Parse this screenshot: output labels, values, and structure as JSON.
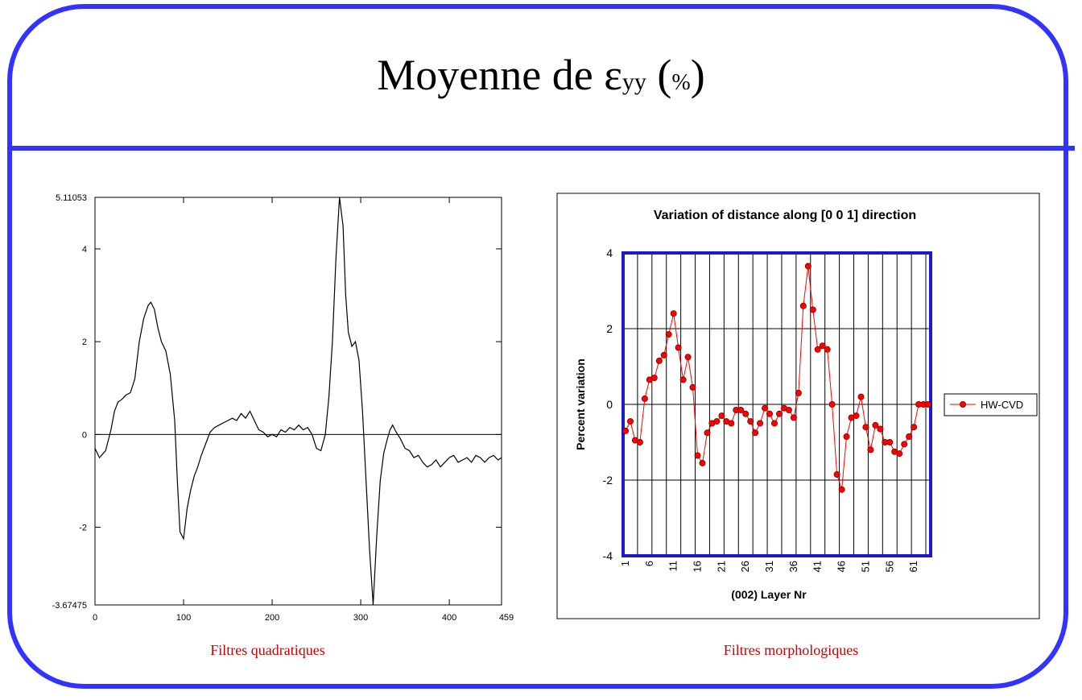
{
  "slide": {
    "title_main": "Moyenne de ε",
    "title_sub": "yy",
    "title_open": " (",
    "title_pct": "%",
    "title_close": ")"
  },
  "captions": {
    "left": "Filtres quadratiques",
    "right": "Filtres morphologiques"
  },
  "chart_data": [
    {
      "type": "line",
      "title": "",
      "xlabel": "",
      "ylabel": "",
      "xlim": [
        0,
        459
      ],
      "ylim": [
        -3.67475,
        5.11053
      ],
      "x_ticks": [
        "0",
        "100",
        "200",
        "300",
        "400",
        "459"
      ],
      "y_ticks": [
        "5.11053",
        "4",
        "2",
        "0",
        "-2",
        "-3.67475"
      ],
      "zero_line": true,
      "color": "#000000",
      "series": [
        {
          "x": [
            0,
            5,
            12,
            18,
            22,
            26,
            30,
            35,
            40,
            45,
            50,
            55,
            60,
            63,
            67,
            71,
            75,
            80,
            85,
            90,
            93,
            96,
            100,
            104,
            108,
            112,
            116,
            120,
            125,
            130,
            135,
            140,
            145,
            150,
            155,
            160,
            165,
            170,
            175,
            180,
            185,
            190,
            195,
            200,
            205,
            210,
            215,
            220,
            225,
            230,
            235,
            240,
            245,
            250,
            255,
            260,
            264,
            268,
            272,
            276,
            280,
            283,
            286,
            290,
            294,
            298,
            302,
            306,
            310,
            314,
            318,
            322,
            326,
            330,
            333,
            336,
            340,
            345,
            350,
            355,
            360,
            365,
            370,
            375,
            380,
            385,
            390,
            395,
            400,
            405,
            410,
            415,
            420,
            425,
            430,
            435,
            440,
            445,
            450,
            455,
            459
          ],
          "y": [
            -0.3,
            -0.5,
            -0.35,
            0.1,
            0.5,
            0.7,
            0.75,
            0.85,
            0.9,
            1.2,
            2.0,
            2.5,
            2.78,
            2.85,
            2.7,
            2.3,
            2.0,
            1.8,
            1.3,
            0.3,
            -1.0,
            -2.1,
            -2.25,
            -1.6,
            -1.2,
            -0.9,
            -0.7,
            -0.45,
            -0.2,
            0.05,
            0.15,
            0.2,
            0.25,
            0.3,
            0.35,
            0.3,
            0.45,
            0.35,
            0.5,
            0.3,
            0.1,
            0.05,
            -0.05,
            0.0,
            -0.05,
            0.1,
            0.05,
            0.15,
            0.1,
            0.2,
            0.1,
            0.15,
            0.0,
            -0.3,
            -0.35,
            0.0,
            0.8,
            2.0,
            3.8,
            5.11,
            4.5,
            3.0,
            2.2,
            1.9,
            2.0,
            1.6,
            0.5,
            -1.0,
            -2.5,
            -3.67,
            -2.2,
            -1.0,
            -0.4,
            -0.1,
            0.1,
            0.2,
            0.05,
            -0.1,
            -0.3,
            -0.35,
            -0.5,
            -0.45,
            -0.6,
            -0.7,
            -0.65,
            -0.55,
            -0.7,
            -0.6,
            -0.5,
            -0.45,
            -0.6,
            -0.55,
            -0.5,
            -0.6,
            -0.45,
            -0.5,
            -0.6,
            -0.5,
            -0.45,
            -0.55,
            -0.5
          ]
        }
      ]
    },
    {
      "type": "line",
      "title": "Variation of distance along [0 0 1] direction",
      "xlabel": "(002) Layer Nr",
      "ylabel": "Percent variation",
      "ylim": [
        -4,
        4
      ],
      "grid": true,
      "legend": "right",
      "x_ticks": [
        "1",
        "6",
        "11",
        "16",
        "21",
        "26",
        "31",
        "36",
        "41",
        "46",
        "51",
        "56",
        "61"
      ],
      "y_ticks": [
        "4",
        "2",
        "0",
        "-2",
        "-4"
      ],
      "categories_count": 64,
      "series": [
        {
          "name": "HW-CVD",
          "color": "#ff0000",
          "values": [
            -0.7,
            -0.45,
            -0.95,
            -1.0,
            0.15,
            0.65,
            0.7,
            1.15,
            1.3,
            1.85,
            2.4,
            1.5,
            0.65,
            1.25,
            0.45,
            -1.35,
            -1.55,
            -0.75,
            -0.5,
            -0.45,
            -0.3,
            -0.45,
            -0.5,
            -0.15,
            -0.15,
            -0.25,
            -0.45,
            -0.75,
            -0.5,
            -0.1,
            -0.25,
            -0.5,
            -0.25,
            -0.1,
            -0.15,
            -0.35,
            0.3,
            2.6,
            3.65,
            2.5,
            1.45,
            1.55,
            1.45,
            0.0,
            -1.85,
            -2.25,
            -0.85,
            -0.35,
            -0.3,
            0.2,
            -0.6,
            -1.2,
            -0.55,
            -0.65,
            -1.0,
            -1.0,
            -1.25,
            -1.3,
            -1.05,
            -0.85,
            -0.6,
            0.0,
            0.0,
            0.0
          ]
        }
      ]
    }
  ]
}
